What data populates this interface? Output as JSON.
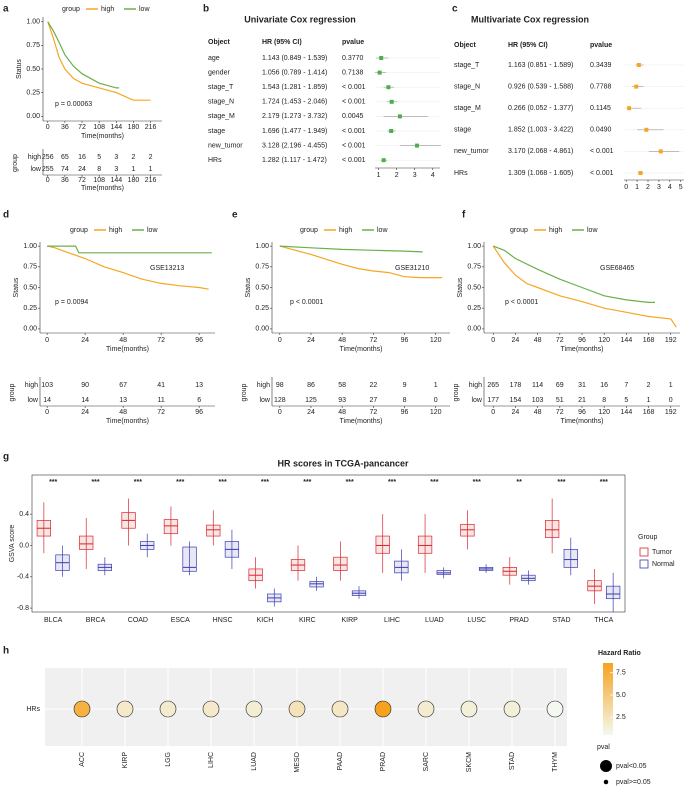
{
  "chart_data": [
    {
      "type": "km",
      "panel": "a",
      "legend_title": "group",
      "ylabel": "Status",
      "xlabel": "Time(months)",
      "risk_ylabel": "group",
      "annotation": "p = 0.00063",
      "xlim": [
        -10,
        240
      ],
      "xticks": [
        0,
        36,
        72,
        108,
        144,
        180,
        216
      ],
      "ylim": [
        -0.05,
        1.05
      ],
      "yticks": [
        {
          "value": 0,
          "label": "0.00"
        },
        {
          "value": 0.25,
          "label": "0.25"
        },
        {
          "value": 0.5,
          "label": "0.50"
        },
        {
          "value": 0.75,
          "label": "0.75"
        },
        {
          "value": 1,
          "label": "1.00"
        }
      ],
      "series": [
        {
          "name": "high",
          "color": "#f5a623",
          "x": [
            0,
            12,
            24,
            36,
            54,
            72,
            108,
            144,
            180,
            216
          ],
          "values": [
            1,
            0.82,
            0.62,
            0.5,
            0.4,
            0.35,
            0.3,
            0.25,
            0.17,
            0.17
          ],
          "at_risk": [
            256,
            65,
            16,
            5,
            3,
            2,
            2
          ]
        },
        {
          "name": "low",
          "color": "#6ab04c",
          "x": [
            0,
            12,
            24,
            36,
            54,
            72,
            108,
            144,
            150
          ],
          "values": [
            1,
            0.9,
            0.78,
            0.65,
            0.53,
            0.45,
            0.35,
            0.3,
            0.3
          ],
          "at_risk": [
            255,
            74,
            24,
            8,
            3,
            1,
            1
          ]
        }
      ]
    },
    {
      "type": "forest",
      "panel": "b",
      "title": "Univariate Cox regression",
      "columns": [
        "Object",
        "HR (95% CI)",
        "pvalue"
      ],
      "color": "#4daf4a",
      "rows": [
        "age",
        "gender",
        "stage_T",
        "stage_N",
        "stage_M",
        "stage",
        "new_tumor",
        "HRs"
      ],
      "hr": [
        1.143,
        1.056,
        1.543,
        1.724,
        2.179,
        1.696,
        3.128,
        1.282
      ],
      "lower": [
        0.849,
        0.789,
        1.281,
        1.453,
        1.273,
        1.477,
        2.196,
        1.117
      ],
      "upper": [
        1.539,
        1.414,
        1.859,
        2.046,
        3.732,
        1.949,
        4.455,
        1.472
      ],
      "hr_labels": [
        "1.143 (0.849 - 1.539)",
        "1.056 (0.789 - 1.414)",
        "1.543 (1.281 - 1.859)",
        "1.724 (1.453 - 2.046)",
        "2.179 (1.273 - 3.732)",
        "1.696 (1.477 - 1.949)",
        "3.128 (2.196 - 4.455)",
        "1.282 (1.117 - 1.472)"
      ],
      "pvalues": [
        "0.3770",
        "0.7138",
        "< 0.001",
        "< 0.001",
        "0.0045",
        "< 0.001",
        "< 0.001",
        "< 0.001"
      ],
      "xlim": [
        0.8,
        4.4
      ],
      "xticks": [
        1,
        2,
        3,
        4
      ]
    },
    {
      "type": "forest",
      "panel": "c",
      "title": "Multivariate Cox regression",
      "columns": [
        "Object",
        "HR (95% CI)",
        "pvalue"
      ],
      "color": "#f5a623",
      "rows": [
        "stage_T",
        "stage_N",
        "stage_M",
        "stage",
        "new_tumor",
        "HRs"
      ],
      "hr": [
        1.163,
        0.926,
        0.266,
        1.852,
        3.17,
        1.309
      ],
      "lower": [
        0.851,
        0.539,
        0.052,
        1.003,
        2.068,
        1.068
      ],
      "upper": [
        1.589,
        1.588,
        1.377,
        3.422,
        4.861,
        1.605
      ],
      "hr_labels": [
        "1.163 (0.851 - 1.589)",
        "0.926 (0.539 - 1.588)",
        "0.266 (0.052 - 1.377)",
        "1.852 (1.003 - 3.422)",
        "3.170 (2.068 - 4.861)",
        "1.309 (1.068 - 1.605)"
      ],
      "pvalues": [
        "0.3439",
        "0.7788",
        "0.1145",
        "0.0490",
        "< 0.001",
        "< 0.001"
      ],
      "xlim": [
        -0.2,
        5.3
      ],
      "xticks": [
        0,
        1,
        2,
        3,
        4,
        5
      ]
    },
    {
      "type": "km",
      "panel": "d",
      "dataset": "GSE13213",
      "legend_title": "group",
      "ylabel": "Status",
      "xlabel": "Time(months)",
      "risk_ylabel": "group",
      "annotation": "p = 0.0094",
      "xlim": [
        -4.5,
        106
      ],
      "xticks": [
        0,
        24,
        48,
        72,
        96
      ],
      "ylim": [
        -0.05,
        1.05
      ],
      "yticks": [
        {
          "value": 0,
          "label": "0.00"
        },
        {
          "value": 0.25,
          "label": "0.25"
        },
        {
          "value": 0.5,
          "label": "0.50"
        },
        {
          "value": 0.75,
          "label": "0.75"
        },
        {
          "value": 1,
          "label": "1.00"
        }
      ],
      "series": [
        {
          "name": "high",
          "color": "#f5a623",
          "x": [
            0,
            5,
            12,
            24,
            36,
            48,
            60,
            72,
            84,
            96,
            102
          ],
          "values": [
            1,
            0.98,
            0.93,
            0.85,
            0.75,
            0.68,
            0.6,
            0.55,
            0.52,
            0.5,
            0.48
          ],
          "at_risk": [
            103,
            90,
            67,
            41,
            13
          ]
        },
        {
          "name": "low",
          "color": "#6ab04c",
          "x": [
            0,
            18,
            20,
            104
          ],
          "values": [
            1,
            1,
            0.92,
            0.92
          ],
          "at_risk": [
            14,
            14,
            13,
            11,
            6
          ]
        }
      ]
    },
    {
      "type": "km",
      "panel": "e",
      "dataset": "GSE31210",
      "legend_title": "group",
      "ylabel": "Status",
      "xlabel": "Time(months)",
      "risk_ylabel": "group",
      "annotation": "p < 0.0001",
      "xlim": [
        -6,
        131
      ],
      "xticks": [
        0,
        24,
        48,
        72,
        96,
        120
      ],
      "ylim": [
        -0.05,
        1.05
      ],
      "yticks": [
        {
          "value": 0,
          "label": "0.00"
        },
        {
          "value": 0.25,
          "label": "0.25"
        },
        {
          "value": 0.5,
          "label": "0.50"
        },
        {
          "value": 0.75,
          "label": "0.75"
        },
        {
          "value": 1,
          "label": "1.00"
        }
      ],
      "series": [
        {
          "name": "high",
          "color": "#f5a623",
          "x": [
            0,
            12,
            24,
            36,
            48,
            60,
            72,
            84,
            96,
            108,
            125
          ],
          "values": [
            1,
            0.95,
            0.9,
            0.84,
            0.78,
            0.73,
            0.7,
            0.68,
            0.63,
            0.62,
            0.62
          ],
          "at_risk": [
            98,
            86,
            58,
            22,
            9,
            1
          ]
        },
        {
          "name": "low",
          "color": "#6ab04c",
          "x": [
            0,
            24,
            48,
            72,
            96,
            110
          ],
          "values": [
            1,
            0.98,
            0.96,
            0.95,
            0.94,
            0.93
          ],
          "at_risk": [
            128,
            125,
            93,
            27,
            8,
            0
          ]
        }
      ]
    },
    {
      "type": "km",
      "panel": "f",
      "dataset": "GSE68465",
      "legend_title": "group",
      "ylabel": "Status",
      "xlabel": "Time(months)",
      "risk_ylabel": "group",
      "annotation": "p < 0.0001",
      "xlim": [
        -10,
        202
      ],
      "xticks": [
        0,
        24,
        48,
        72,
        96,
        120,
        144,
        168,
        192
      ],
      "ylim": [
        -0.05,
        1.05
      ],
      "yticks": [
        {
          "value": 0,
          "label": "0.00"
        },
        {
          "value": 0.25,
          "label": "0.25"
        },
        {
          "value": 0.5,
          "label": "0.50"
        },
        {
          "value": 0.75,
          "label": "0.75"
        },
        {
          "value": 1,
          "label": "1.00"
        }
      ],
      "series": [
        {
          "name": "high",
          "color": "#f5a623",
          "x": [
            0,
            12,
            24,
            36,
            48,
            72,
            96,
            120,
            144,
            168,
            192,
            198
          ],
          "values": [
            1,
            0.8,
            0.65,
            0.55,
            0.5,
            0.4,
            0.33,
            0.25,
            0.2,
            0.15,
            0.12,
            0.02
          ],
          "at_risk": [
            265,
            178,
            114,
            69,
            31,
            16,
            7,
            2,
            1
          ]
        },
        {
          "name": "low",
          "color": "#6ab04c",
          "x": [
            0,
            12,
            24,
            48,
            72,
            96,
            120,
            144,
            168,
            175
          ],
          "values": [
            1,
            0.95,
            0.85,
            0.72,
            0.6,
            0.5,
            0.4,
            0.35,
            0.32,
            0.32
          ],
          "at_risk": [
            177,
            154,
            103,
            51,
            21,
            8,
            5,
            1,
            0
          ]
        }
      ]
    },
    {
      "type": "box",
      "panel": "g",
      "title": "HR scores in TCGA-pancancer",
      "ylabel": "GSVA score",
      "legend_title": "Group",
      "categories": [
        "BLCA",
        "BRCA",
        "COAD",
        "ESCA",
        "HNSC",
        "KICH",
        "KIRC",
        "KIRP",
        "LIHC",
        "LUAD",
        "LUSC",
        "PRAD",
        "STAD",
        "THCA"
      ],
      "significance": [
        "***",
        "***",
        "***",
        "***",
        "***",
        "***",
        "***",
        "***",
        "***",
        "***",
        "***",
        "**",
        "***",
        "***"
      ],
      "ylim": [
        -0.85,
        0.9
      ],
      "yticks": [
        -0.8,
        -0.4,
        {
          "value": 0,
          "label": "0.0"
        },
        0.4
      ],
      "series": [
        {
          "name": "Tumor",
          "color": "#d7262b",
          "min": [
            -0.1,
            -0.3,
            0.0,
            0.0,
            0.0,
            -0.55,
            -0.45,
            -0.45,
            -0.35,
            -0.35,
            -0.05,
            -0.5,
            -0.1,
            -0.75
          ],
          "q1": [
            0.12,
            -0.05,
            0.22,
            0.15,
            0.12,
            -0.45,
            -0.32,
            -0.32,
            -0.1,
            -0.1,
            0.12,
            -0.38,
            0.1,
            -0.58
          ],
          "median": [
            0.22,
            0.02,
            0.32,
            0.25,
            0.2,
            -0.38,
            -0.25,
            -0.25,
            0.0,
            0.0,
            0.2,
            -0.33,
            0.2,
            -0.52
          ],
          "q3": [
            0.32,
            0.12,
            0.42,
            0.33,
            0.26,
            -0.3,
            -0.18,
            -0.15,
            0.12,
            0.12,
            0.27,
            -0.28,
            0.32,
            -0.45
          ],
          "max": [
            0.55,
            0.35,
            0.6,
            0.5,
            0.45,
            -0.15,
            0.0,
            0.05,
            0.4,
            0.4,
            0.45,
            -0.15,
            0.6,
            -0.3
          ]
        },
        {
          "name": "Normal",
          "color": "#3b3bb0",
          "min": [
            -0.4,
            -0.38,
            -0.15,
            -0.38,
            -0.3,
            -0.78,
            -0.58,
            -0.68,
            -0.45,
            -0.42,
            -0.35,
            -0.5,
            -0.38,
            -0.85
          ],
          "q1": [
            -0.32,
            -0.32,
            -0.05,
            -0.33,
            -0.15,
            -0.72,
            -0.53,
            -0.64,
            -0.35,
            -0.37,
            -0.32,
            -0.45,
            -0.28,
            -0.68
          ],
          "median": [
            -0.22,
            -0.28,
            0.0,
            -0.28,
            -0.05,
            -0.67,
            -0.49,
            -0.61,
            -0.28,
            -0.35,
            -0.3,
            -0.42,
            -0.18,
            -0.62
          ],
          "q3": [
            -0.12,
            -0.24,
            0.05,
            -0.02,
            0.05,
            -0.62,
            -0.46,
            -0.58,
            -0.2,
            -0.32,
            -0.28,
            -0.38,
            -0.05,
            -0.52
          ],
          "max": [
            0.0,
            -0.15,
            0.15,
            0.05,
            0.2,
            -0.55,
            -0.4,
            -0.52,
            -0.05,
            -0.28,
            -0.24,
            -0.32,
            0.1,
            -0.35
          ]
        }
      ]
    },
    {
      "type": "dot",
      "panel": "h",
      "row_label": "HRs",
      "colorbar_title": "Hazard Ratio",
      "size_title": "pval",
      "size_levels": [
        "pval<0.05",
        "pval>=0.05"
      ],
      "categories": [
        "ACC",
        "KIRP",
        "LGG",
        "LIHC",
        "LUAD",
        "MESO",
        "PAAD",
        "PRAD",
        "SARC",
        "SKCM",
        "STAD",
        "THYM"
      ],
      "values": [
        7.2,
        2.0,
        1.8,
        1.9,
        1.6,
        2.6,
        2.2,
        8.6,
        1.7,
        1.3,
        1.4,
        0.5
      ],
      "pval": [
        "pval<0.05",
        "pval<0.05",
        "pval<0.05",
        "pval<0.05",
        "pval<0.05",
        "pval<0.05",
        "pval<0.05",
        "pval<0.05",
        "pval<0.05",
        "pval<0.05",
        "pval<0.05",
        "pval<0.05"
      ],
      "colors": [
        "#f3f9ef",
        "#f6a21e"
      ],
      "clim": [
        0.5,
        8.6
      ],
      "cticks": [
        2.5,
        {
          "value": 5,
          "label": "5.0"
        },
        7.5
      ]
    }
  ]
}
